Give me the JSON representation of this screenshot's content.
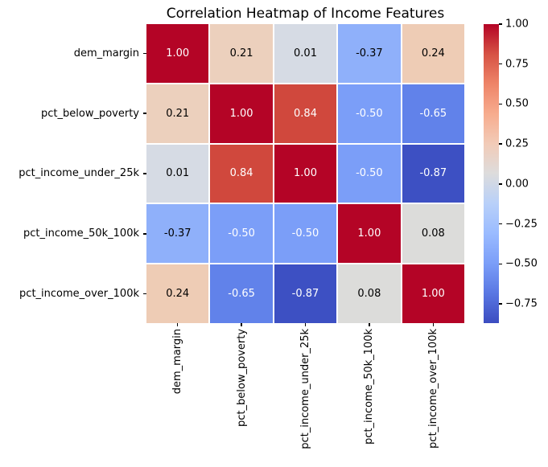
{
  "chart_data": {
    "type": "heatmap",
    "title": "Correlation Heatmap of Income Features",
    "colormap": "coolwarm",
    "grid_line_color": "#ffffff",
    "features": [
      "dem_margin",
      "pct_below_poverty",
      "pct_income_under_25k",
      "pct_income_50k_100k",
      "pct_income_over_100k"
    ],
    "matrix": [
      [
        1.0,
        0.21,
        0.01,
        -0.37,
        0.24
      ],
      [
        0.21,
        1.0,
        0.84,
        -0.5,
        -0.65
      ],
      [
        0.01,
        0.84,
        1.0,
        -0.5,
        -0.87
      ],
      [
        -0.37,
        -0.5,
        -0.5,
        1.0,
        0.08
      ],
      [
        0.24,
        -0.65,
        -0.87,
        0.08,
        1.0
      ]
    ],
    "cell_labels": [
      [
        "1.00",
        "0.21",
        "0.01",
        "-0.37",
        "0.24"
      ],
      [
        "0.21",
        "1.00",
        "0.84",
        "-0.50",
        "-0.65"
      ],
      [
        "0.01",
        "0.84",
        "1.00",
        "-0.50",
        "-0.87"
      ],
      [
        "-0.37",
        "-0.50",
        "-0.50",
        "1.00",
        "0.08"
      ],
      [
        "0.24",
        "-0.65",
        "-0.87",
        "0.08",
        "1.00"
      ]
    ],
    "cell_colors": [
      [
        "#b40426",
        "#ecd0bd",
        "#d6dbe4",
        "#8fb0fa",
        "#eeccb5"
      ],
      [
        "#ecd0bd",
        "#b40426",
        "#d0483d",
        "#7b9ef8",
        "#6182ea"
      ],
      [
        "#d6dbe4",
        "#d0483d",
        "#b40426",
        "#7b9ef8",
        "#3d50c3"
      ],
      [
        "#8fb0fa",
        "#7b9ef8",
        "#7b9ef8",
        "#b40426",
        "#dcdcda"
      ],
      [
        "#eeccb5",
        "#6182ea",
        "#3d50c3",
        "#dcdcda",
        "#b40426"
      ]
    ],
    "colorbar": {
      "vmin": -0.87,
      "vmax": 1.0,
      "ticks": [
        {
          "value": 1.0,
          "label": "1.00"
        },
        {
          "value": 0.75,
          "label": "0.75"
        },
        {
          "value": 0.5,
          "label": "0.50"
        },
        {
          "value": 0.25,
          "label": "0.25"
        },
        {
          "value": 0.0,
          "label": "0.00"
        },
        {
          "value": -0.25,
          "label": "−0.25"
        },
        {
          "value": -0.5,
          "label": "−0.50"
        },
        {
          "value": -0.75,
          "label": "−0.75"
        }
      ],
      "gradient_stops": [
        {
          "t": 0.0,
          "color": "#3b4cc0"
        },
        {
          "t": 0.1,
          "color": "#5977e3"
        },
        {
          "t": 0.2,
          "color": "#7b9ef8"
        },
        {
          "t": 0.3,
          "color": "#9abbff"
        },
        {
          "t": 0.4,
          "color": "#b8d0f9"
        },
        {
          "t": 0.5,
          "color": "#dddcdc"
        },
        {
          "t": 0.6,
          "color": "#f2cbb7"
        },
        {
          "t": 0.7,
          "color": "#f7ac8e"
        },
        {
          "t": 0.8,
          "color": "#ee8468"
        },
        {
          "t": 0.9,
          "color": "#d65244"
        },
        {
          "t": 1.0,
          "color": "#b40426"
        }
      ]
    }
  }
}
